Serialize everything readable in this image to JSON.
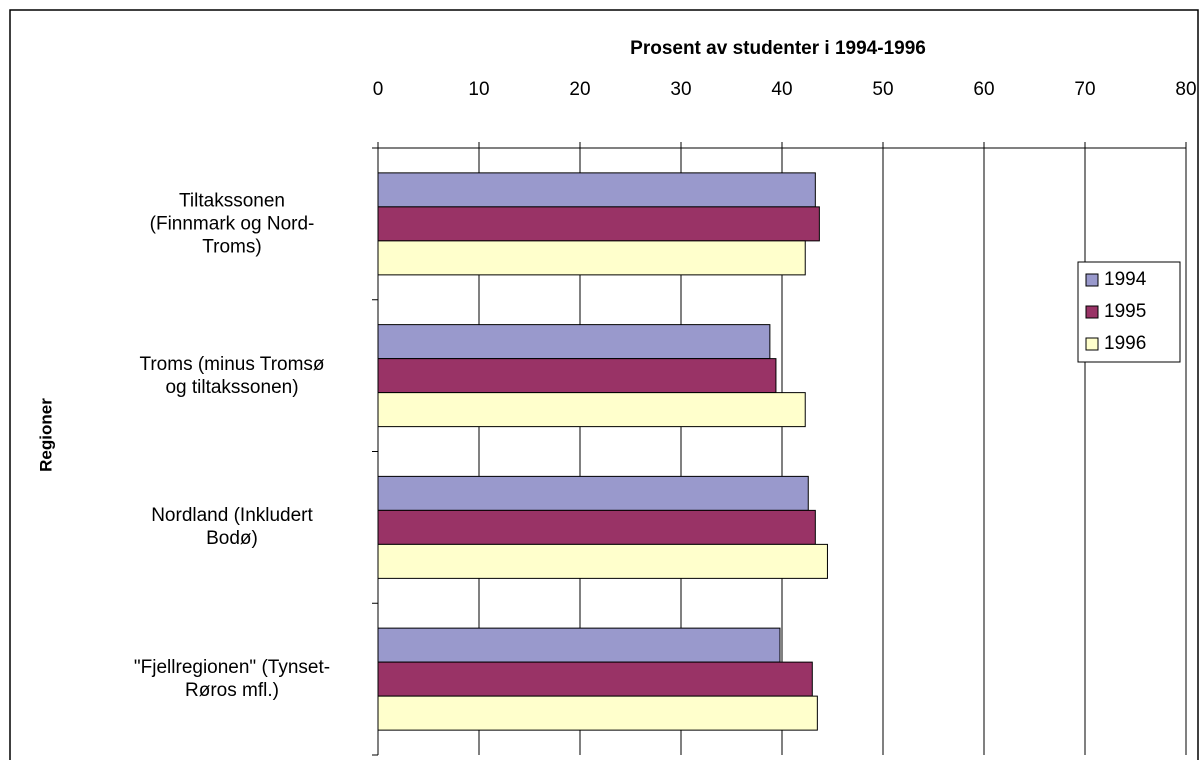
{
  "chart_data": {
    "type": "barh",
    "title": "Prosent av studenter i 1994-1996",
    "y_label": "Regioner",
    "categories": [
      "Tiltakssonen\n(Finnmark og Nord-\nTroms)",
      "Troms (minus Tromsø\nog tiltakssonen)",
      "Nordland (Inkludert\nBodø)",
      "\"Fjellregionen\" (Tynset-\nRøros mfl.)"
    ],
    "series": [
      {
        "name": "1994",
        "color": "#9999cc",
        "values": [
          43.3,
          38.8,
          42.6,
          39.8
        ]
      },
      {
        "name": "1995",
        "color": "#993366",
        "values": [
          43.7,
          39.4,
          43.3,
          43.0
        ]
      },
      {
        "name": "1996",
        "color": "#ffffcc",
        "values": [
          42.3,
          42.3,
          44.5,
          43.5
        ]
      }
    ],
    "xlim": [
      0,
      80
    ],
    "xticks": [
      0,
      10,
      20,
      30,
      40,
      50,
      60,
      70,
      80
    ],
    "grid": true,
    "legend": "right"
  }
}
